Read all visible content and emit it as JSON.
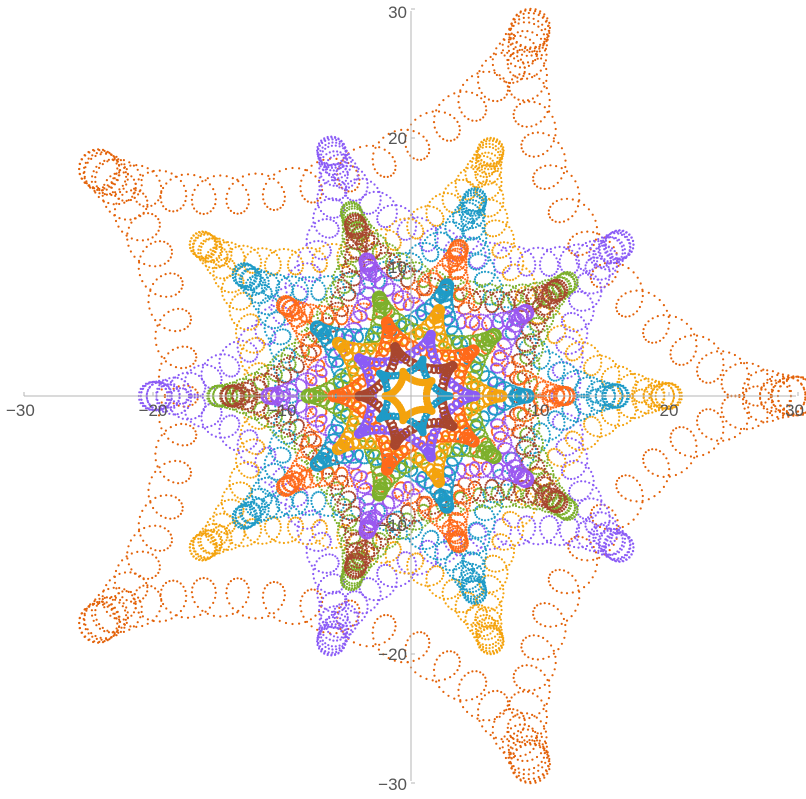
{
  "chart_data": {
    "type": "scatter",
    "title": "",
    "xlabel": "",
    "ylabel": "",
    "xlim": [
      -30,
      30
    ],
    "ylim": [
      -30,
      30
    ],
    "x_ticks": [
      -30,
      -20,
      -10,
      10,
      20,
      30
    ],
    "y_ticks": [
      -30,
      -20,
      -10,
      10,
      20,
      30
    ],
    "x_tick_labels": [
      "−30",
      "−20",
      "−10",
      "10",
      "20",
      "30"
    ],
    "y_tick_labels": [
      "−30",
      "−20",
      "−10",
      "10",
      "20",
      "30"
    ],
    "grid": false,
    "legend": "none",
    "axes_style": "cross-at-origin",
    "series": [
      {
        "color": "#E36209",
        "hypocycloid_radius": 30,
        "cusps": 5,
        "rotation_deg": 0,
        "loop_amplitude": 1.5,
        "loop_frequency": 100
      },
      {
        "color": "#8B5CF6",
        "hypocycloid_radius": 20,
        "cusps": 5,
        "rotation_deg": 180,
        "loop_amplitude": 1.1,
        "loop_frequency": 100
      },
      {
        "color": "#F4A30E",
        "hypocycloid_radius": 20,
        "cusps": 5,
        "rotation_deg": 0,
        "loop_amplitude": 1.0,
        "loop_frequency": 100
      },
      {
        "color": "#1F9BC7",
        "hypocycloid_radius": 16,
        "cusps": 5,
        "rotation_deg": 0,
        "loop_amplitude": 0.9,
        "loop_frequency": 100
      },
      {
        "color": "#7DB02C",
        "hypocycloid_radius": 15,
        "cusps": 5,
        "rotation_deg": 180,
        "loop_amplitude": 0.8,
        "loop_frequency": 100
      },
      {
        "color": "#A8472F",
        "hypocycloid_radius": 14,
        "cusps": 5,
        "rotation_deg": 180,
        "loop_amplitude": 0.8,
        "loop_frequency": 100
      },
      {
        "color": "#FF6A1A",
        "hypocycloid_radius": 12,
        "cusps": 5,
        "rotation_deg": 0,
        "loop_amplitude": 0.7,
        "loop_frequency": 100
      },
      {
        "color": "#9B59F0",
        "hypocycloid_radius": 11,
        "cusps": 5,
        "rotation_deg": 180,
        "loop_amplitude": 0.6,
        "loop_frequency": 100
      },
      {
        "color": "#1F9BC7",
        "hypocycloid_radius": 9,
        "cusps": 5,
        "rotation_deg": 0,
        "loop_amplitude": 0.5,
        "loop_frequency": 100
      },
      {
        "color": "#7DB02C",
        "hypocycloid_radius": 8,
        "cusps": 5,
        "rotation_deg": 180,
        "loop_amplitude": 0.5,
        "loop_frequency": 100
      },
      {
        "color": "#F4A30E",
        "hypocycloid_radius": 7,
        "cusps": 5,
        "rotation_deg": 0,
        "loop_amplitude": 0.4,
        "loop_frequency": 100
      },
      {
        "color": "#FF6A1A",
        "hypocycloid_radius": 6,
        "cusps": 5,
        "rotation_deg": 180,
        "loop_amplitude": 0.4,
        "loop_frequency": 100
      },
      {
        "color": "#8B5CF6",
        "hypocycloid_radius": 5,
        "cusps": 5,
        "rotation_deg": 0,
        "loop_amplitude": 0.3,
        "loop_frequency": 100
      },
      {
        "color": "#A8472F",
        "hypocycloid_radius": 4,
        "cusps": 5,
        "rotation_deg": 180,
        "loop_amplitude": 0.3,
        "loop_frequency": 100
      },
      {
        "color": "#1F9BC7",
        "hypocycloid_radius": 3,
        "cusps": 5,
        "rotation_deg": 0,
        "loop_amplitude": 0.2,
        "loop_frequency": 100
      },
      {
        "color": "#F4A30E",
        "hypocycloid_radius": 2,
        "cusps": 5,
        "rotation_deg": 180,
        "loop_amplitude": 0.2,
        "loop_frequency": 100
      }
    ]
  }
}
